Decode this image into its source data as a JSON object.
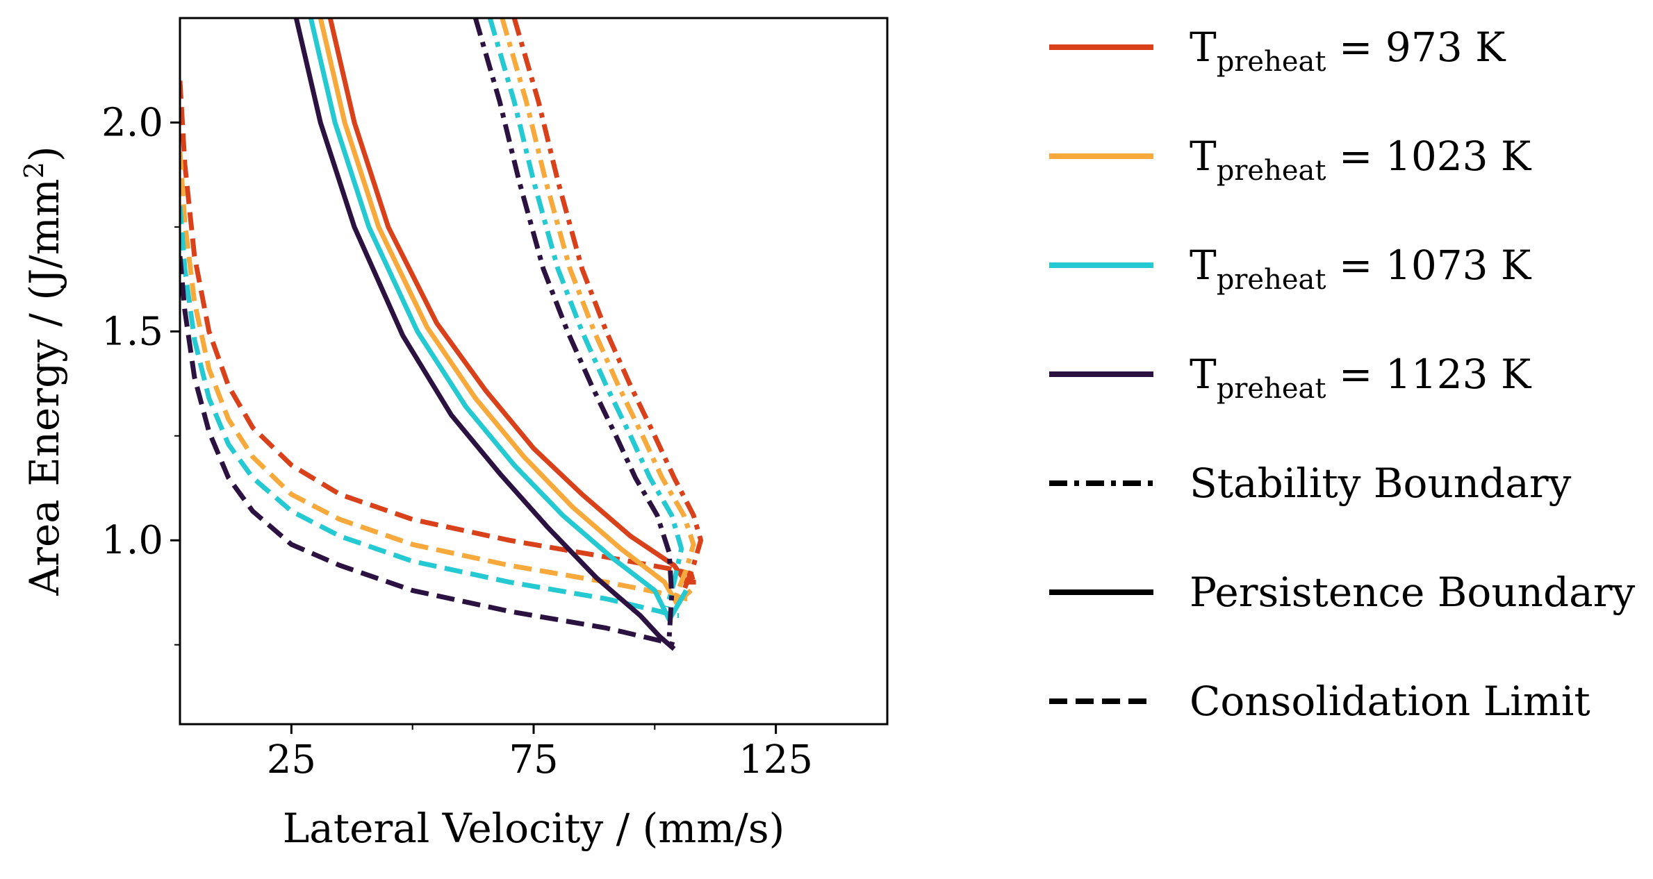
{
  "chart_data": {
    "type": "line",
    "title": "",
    "xlabel": "Lateral Velocity / (mm/s)",
    "ylabel_prefix": "Area Energy / (J/mm",
    "ylabel_sup": "2",
    "ylabel_suffix": ")",
    "xlim": [
      2,
      148
    ],
    "ylim": [
      0.56,
      2.25
    ],
    "xticks": [
      25,
      75,
      125
    ],
    "xtick_labels": [
      "25",
      "75",
      "125"
    ],
    "x_minor_ticks": [
      50,
      100
    ],
    "yticks": [
      1.0,
      1.5,
      2.0
    ],
    "ytick_labels": [
      "1.0",
      "1.5",
      "2.0"
    ],
    "y_minor_ticks": [
      0.75,
      1.25,
      1.75
    ],
    "grid": false,
    "legend_position": "outside-right",
    "legend": [
      {
        "kind": "temp",
        "main": "T",
        "sub": "preheat",
        "rest": " = 973 K",
        "color": "#d9411b"
      },
      {
        "kind": "temp",
        "main": "T",
        "sub": "preheat",
        "rest": " = 1023 K",
        "color": "#f7a93b"
      },
      {
        "kind": "temp",
        "main": "T",
        "sub": "preheat",
        "rest": " = 1073 K",
        "color": "#24c9d1"
      },
      {
        "kind": "temp",
        "main": "T",
        "sub": "preheat",
        "rest": " = 1123 K",
        "color": "#2b1240"
      },
      {
        "kind": "style",
        "label": "Stability Boundary",
        "dash": "dashdot",
        "color": "#000000"
      },
      {
        "kind": "style",
        "label": "Persistence Boundary",
        "dash": "solid",
        "color": "#000000"
      },
      {
        "kind": "style",
        "label": "Consolidation Limit",
        "dash": "dashed",
        "color": "#000000"
      }
    ],
    "series": [
      {
        "name": "T_preheat = 973 K",
        "temperature": 973,
        "color": "#d9411b",
        "stability": {
          "x": [
            71,
            76,
            80,
            85,
            90,
            95,
            100,
            104,
            108,
            109.5,
            108,
            106
          ],
          "y": [
            2.25,
            2.05,
            1.86,
            1.65,
            1.5,
            1.37,
            1.25,
            1.15,
            1.06,
            1.0,
            0.94,
            0.88
          ]
        },
        "persistence": {
          "x": [
            33,
            38,
            45,
            55,
            65,
            75,
            85,
            95,
            104,
            106.5,
            108.5
          ],
          "y": [
            2.25,
            2.0,
            1.75,
            1.52,
            1.36,
            1.22,
            1.11,
            1.01,
            0.94,
            0.9,
            0.9
          ]
        },
        "consolidation": {
          "x": [
            2,
            3,
            5,
            8,
            12,
            17,
            25,
            35,
            50,
            70,
            90,
            104,
            107.5,
            108
          ],
          "y": [
            2.1,
            1.9,
            1.68,
            1.5,
            1.37,
            1.27,
            1.18,
            1.11,
            1.05,
            1.0,
            0.96,
            0.93,
            0.92,
            0.9
          ]
        }
      },
      {
        "name": "T_preheat = 1023 K",
        "temperature": 1023,
        "color": "#f7a93b",
        "stability": {
          "x": [
            68.5,
            73.5,
            77.5,
            82.5,
            87.5,
            92.5,
            97.5,
            101.5,
            106,
            108,
            106.5,
            104.5
          ],
          "y": [
            2.25,
            2.05,
            1.86,
            1.65,
            1.5,
            1.37,
            1.25,
            1.15,
            1.06,
            0.99,
            0.93,
            0.87
          ]
        },
        "persistence": {
          "x": [
            31,
            36,
            43,
            53,
            63,
            73,
            83,
            93,
            102,
            104.5,
            107.5
          ],
          "y": [
            2.25,
            2.0,
            1.75,
            1.51,
            1.34,
            1.2,
            1.08,
            0.98,
            0.9,
            0.85,
            0.88
          ]
        },
        "consolidation": {
          "x": [
            2,
            3,
            5,
            8,
            12,
            17,
            25,
            35,
            50,
            70,
            90,
            103,
            106.5,
            107
          ],
          "y": [
            1.93,
            1.76,
            1.57,
            1.41,
            1.29,
            1.2,
            1.11,
            1.05,
            0.99,
            0.94,
            0.9,
            0.87,
            0.86,
            0.86
          ]
        }
      },
      {
        "name": "T_preheat = 1073 K",
        "temperature": 1073,
        "color": "#24c9d1",
        "stability": {
          "x": [
            66,
            71,
            75,
            80,
            85,
            90,
            95,
            99,
            103.5,
            105.5,
            104,
            102.5
          ],
          "y": [
            2.25,
            2.05,
            1.86,
            1.65,
            1.5,
            1.37,
            1.25,
            1.15,
            1.06,
            0.98,
            0.9,
            0.84
          ]
        },
        "persistence": {
          "x": [
            29,
            34,
            41,
            51,
            61,
            71,
            81,
            91,
            100,
            103,
            106.5
          ],
          "y": [
            2.25,
            2.0,
            1.75,
            1.5,
            1.32,
            1.18,
            1.06,
            0.96,
            0.88,
            0.81,
            0.88
          ]
        },
        "consolidation": {
          "x": [
            2,
            3,
            5,
            8,
            12,
            17,
            25,
            35,
            50,
            70,
            90,
            101,
            104,
            105
          ],
          "y": [
            1.8,
            1.65,
            1.48,
            1.34,
            1.23,
            1.15,
            1.07,
            1.01,
            0.95,
            0.9,
            0.86,
            0.83,
            0.82,
            0.82
          ]
        }
      },
      {
        "name": "T_preheat = 1123 K",
        "temperature": 1123,
        "color": "#2b1240",
        "stability": {
          "x": [
            63,
            68,
            72,
            77,
            82,
            87,
            92,
            96,
            100.5,
            103,
            103.5,
            103
          ],
          "y": [
            2.25,
            2.05,
            1.86,
            1.65,
            1.5,
            1.37,
            1.25,
            1.15,
            1.06,
            0.97,
            0.87,
            0.77
          ]
        },
        "persistence": {
          "x": [
            26,
            31,
            38,
            48,
            58,
            68,
            78,
            88,
            97,
            101,
            104
          ],
          "y": [
            2.25,
            2.0,
            1.75,
            1.49,
            1.3,
            1.16,
            1.03,
            0.91,
            0.82,
            0.77,
            0.74
          ]
        },
        "consolidation": {
          "x": [
            2,
            3,
            5,
            8,
            12,
            17,
            25,
            35,
            50,
            70,
            90,
            101,
            104
          ],
          "y": [
            1.68,
            1.55,
            1.39,
            1.26,
            1.15,
            1.07,
            0.99,
            0.94,
            0.88,
            0.83,
            0.79,
            0.76,
            0.75
          ]
        }
      }
    ]
  }
}
